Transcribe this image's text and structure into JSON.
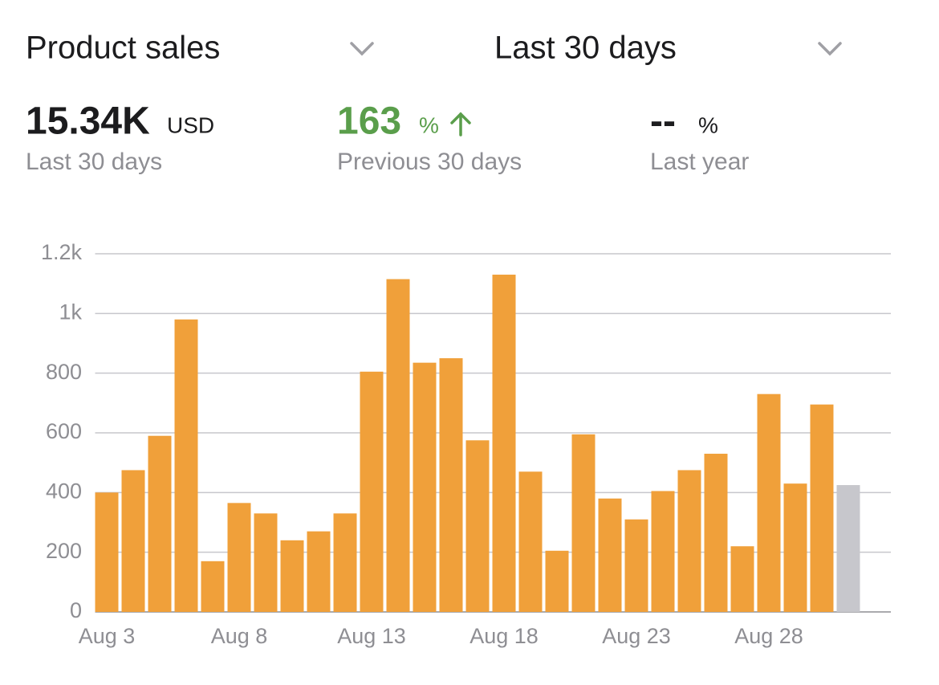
{
  "header": {
    "metric": "Product sales",
    "period": "Last 30 days"
  },
  "stats": [
    {
      "value": "15.34K",
      "unit": "USD",
      "label": "Last 30 days"
    },
    {
      "value": "163",
      "unit": "%",
      "label": "Previous 30 days"
    },
    {
      "value": "--",
      "unit": "%",
      "label": "Last year"
    }
  ],
  "chart_data": {
    "type": "bar",
    "categories": [
      "Aug 3",
      null,
      null,
      null,
      null,
      "Aug 8",
      null,
      null,
      null,
      null,
      "Aug 13",
      null,
      null,
      null,
      null,
      "Aug 18",
      null,
      null,
      null,
      null,
      "Aug 23",
      null,
      null,
      null,
      null,
      "Aug 28",
      null,
      null,
      null
    ],
    "values": [
      400,
      475,
      590,
      980,
      170,
      365,
      330,
      240,
      270,
      330,
      805,
      1115,
      835,
      850,
      575,
      1130,
      470,
      205,
      595,
      380,
      310,
      405,
      475,
      530,
      220,
      730,
      430,
      695,
      425
    ],
    "colors": [
      "#f0a03a",
      "#f0a03a",
      "#f0a03a",
      "#f0a03a",
      "#f0a03a",
      "#f0a03a",
      "#f0a03a",
      "#f0a03a",
      "#f0a03a",
      "#f0a03a",
      "#f0a03a",
      "#f0a03a",
      "#f0a03a",
      "#f0a03a",
      "#f0a03a",
      "#f0a03a",
      "#f0a03a",
      "#f0a03a",
      "#f0a03a",
      "#f0a03a",
      "#f0a03a",
      "#f0a03a",
      "#f0a03a",
      "#f0a03a",
      "#f0a03a",
      "#f0a03a",
      "#f0a03a",
      "#f0a03a",
      "#c7c7cc"
    ],
    "ylim": [
      0,
      1200
    ],
    "yticks": [
      0,
      200,
      400,
      600,
      800,
      {
        "value": 1000,
        "label": "1k"
      },
      {
        "value": 1200,
        "label": "1.2k"
      }
    ],
    "grid": true
  }
}
